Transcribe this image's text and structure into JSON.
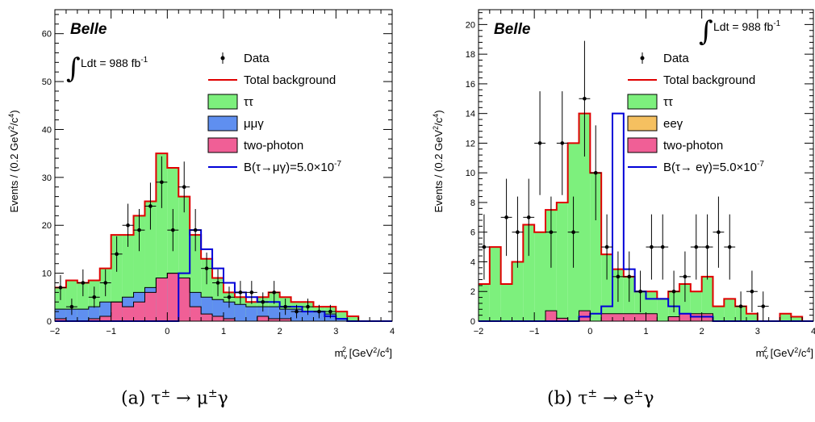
{
  "chart_data": [
    {
      "type": "histogram",
      "panel_tag": "Belle",
      "luminosity": "Ldt = 988 fb",
      "luminosity_sup": "-1",
      "ylabel": "Events / (0.2 GeV",
      "ylabel_sup1": "2",
      "ylabel_mid": "/c",
      "ylabel_sup2": "4",
      "ylabel_end": ")",
      "xlabel": "m",
      "xlabel_sub": "ν",
      "xlabel_sup": "2",
      "xlabel_unit": " [GeV",
      "xlabel_unit_sup1": "2",
      "xlabel_unit_mid": "/c",
      "xlabel_unit_sup2": "4",
      "xlabel_unit_end": "]",
      "xlim": [
        -2,
        4
      ],
      "ylim": [
        0,
        65
      ],
      "bin_width": 0.2,
      "xticks": [
        "−2",
        "−1",
        "0",
        "1",
        "2",
        "3",
        "4"
      ],
      "yticks": [
        "0",
        "10",
        "20",
        "30",
        "40",
        "50",
        "60"
      ],
      "yticks_values": [
        0,
        10,
        20,
        30,
        40,
        50,
        60
      ],
      "legend": {
        "data": "Data",
        "total": "Total background",
        "tautau": "ττ",
        "other": "μμγ",
        "twophoton": "two-photon",
        "signal": "B(τ→μγ)=5.0×10",
        "signal_sup": "-7"
      },
      "colors": {
        "tautau": "#7df07d",
        "other": "#5f8ff0",
        "twophoton": "#f05f96",
        "total": "#e00000",
        "signal": "#0000d8"
      },
      "bins_start": -2.0,
      "total_background": [
        7,
        8.5,
        8,
        8.5,
        11,
        18,
        18,
        22,
        25,
        35,
        32,
        26,
        18,
        13,
        9,
        6,
        5,
        4,
        5,
        6,
        5,
        4,
        4,
        3,
        3,
        2,
        1,
        0,
        0,
        0
      ],
      "other_mumugamma": [
        2.5,
        2.5,
        2.5,
        3,
        4,
        4,
        5,
        6,
        7,
        9,
        10,
        9,
        6,
        5,
        4.5,
        4,
        3.5,
        3,
        3,
        3,
        2.5,
        2.5,
        2,
        2,
        1.5,
        0.5,
        0,
        0,
        0,
        0
      ],
      "twophoton": [
        0.5,
        0,
        0,
        0.5,
        1,
        4,
        3,
        4,
        6,
        9,
        10,
        9,
        3,
        1.5,
        1,
        0.5,
        0,
        0,
        1,
        0.5,
        0.5,
        0,
        0,
        0,
        0,
        0,
        0,
        0,
        0,
        0
      ],
      "signal": [
        0,
        0,
        0,
        0,
        0,
        0,
        0,
        0,
        0,
        0,
        0,
        10,
        19,
        15,
        11,
        8,
        6,
        5,
        4,
        4,
        3,
        3,
        2,
        2,
        1,
        0.5,
        0,
        0,
        0,
        0
      ],
      "data_points": [
        {
          "x": -1.9,
          "y": 7,
          "e": 2.6
        },
        {
          "x": -1.7,
          "y": 3,
          "e": 1.7
        },
        {
          "x": -1.5,
          "y": 8,
          "e": 2.8
        },
        {
          "x": -1.3,
          "y": 5,
          "e": 2.2
        },
        {
          "x": -1.1,
          "y": 8,
          "e": 2.8
        },
        {
          "x": -0.9,
          "y": 14,
          "e": 3.7
        },
        {
          "x": -0.7,
          "y": 20,
          "e": 4.5
        },
        {
          "x": -0.5,
          "y": 19,
          "e": 4.4
        },
        {
          "x": -0.3,
          "y": 24,
          "e": 4.9
        },
        {
          "x": -0.1,
          "y": 29,
          "e": 5.4
        },
        {
          "x": 0.1,
          "y": 19,
          "e": 4.4
        },
        {
          "x": 0.3,
          "y": 28,
          "e": 5.3
        },
        {
          "x": 0.5,
          "y": 19,
          "e": 4.4
        },
        {
          "x": 0.7,
          "y": 11,
          "e": 3.3
        },
        {
          "x": 0.9,
          "y": 8,
          "e": 2.8
        },
        {
          "x": 1.1,
          "y": 5,
          "e": 2.2
        },
        {
          "x": 1.3,
          "y": 6,
          "e": 2.4
        },
        {
          "x": 1.5,
          "y": 6,
          "e": 2.4
        },
        {
          "x": 1.7,
          "y": 4,
          "e": 2.0
        },
        {
          "x": 1.9,
          "y": 6,
          "e": 2.4
        },
        {
          "x": 2.1,
          "y": 3,
          "e": 1.7
        },
        {
          "x": 2.3,
          "y": 2,
          "e": 1.4
        },
        {
          "x": 2.5,
          "y": 3,
          "e": 1.7
        },
        {
          "x": 2.7,
          "y": 2,
          "e": 1.4
        },
        {
          "x": 2.9,
          "y": 2,
          "e": 1.4
        }
      ]
    },
    {
      "type": "histogram",
      "panel_tag": "Belle",
      "luminosity": "Ldt = 988 fb",
      "luminosity_sup": "-1",
      "ylabel": "Events / (0.2 GeV",
      "ylabel_sup1": "2",
      "ylabel_mid": "/c",
      "ylabel_sup2": "4",
      "ylabel_end": ")",
      "xlabel": "m",
      "xlabel_sub": "ν",
      "xlabel_sup": "2",
      "xlabel_unit": " [GeV",
      "xlabel_unit_sup1": "2",
      "xlabel_unit_mid": "/c",
      "xlabel_unit_sup2": "4",
      "xlabel_unit_end": "]",
      "xlim": [
        -2,
        4
      ],
      "ylim": [
        0,
        21
      ],
      "bin_width": 0.2,
      "xticks": [
        "−2",
        "−1",
        "0",
        "1",
        "2",
        "3",
        "4"
      ],
      "yticks": [
        "0",
        "2",
        "4",
        "6",
        "8",
        "10",
        "12",
        "14",
        "16",
        "18",
        "20"
      ],
      "yticks_values": [
        0,
        2,
        4,
        6,
        8,
        10,
        12,
        14,
        16,
        18,
        20
      ],
      "legend": {
        "data": "Data",
        "total": "Total background",
        "tautau": "ττ",
        "other": "eeγ",
        "twophoton": "two-photon",
        "signal": "B(τ→ eγ)=5.0×10",
        "signal_sup": "-7"
      },
      "colors": {
        "tautau": "#7df07d",
        "other": "#f5c060",
        "twophoton": "#f05f96",
        "total": "#e00000",
        "signal": "#0000d8"
      },
      "bins_start": -2.0,
      "total_background": [
        2.5,
        5,
        2.5,
        4,
        6.5,
        6,
        7.5,
        8,
        12,
        14,
        10,
        4.5,
        3.5,
        3,
        2,
        2,
        1.5,
        2,
        2.5,
        2,
        3,
        1,
        1.5,
        1,
        0.5,
        0,
        0,
        0.5,
        0.3,
        0
      ],
      "other_mumugamma": [
        0,
        0,
        0,
        0,
        0,
        0,
        0,
        0,
        0,
        0,
        0,
        0,
        0,
        0,
        0,
        0,
        0,
        0,
        0,
        0,
        0,
        0,
        0,
        0,
        0,
        0,
        0,
        0,
        0,
        0
      ],
      "twophoton": [
        0,
        0,
        0,
        0,
        0,
        0,
        0.7,
        0.2,
        0,
        0.7,
        0,
        0.5,
        0.5,
        0.5,
        0.5,
        0.5,
        0,
        0.3,
        0.5,
        0.5,
        0.5,
        0,
        0,
        0,
        0,
        0,
        0,
        0,
        0,
        0
      ],
      "signal": [
        0,
        0,
        0,
        0,
        0,
        0,
        0,
        0,
        0,
        0.3,
        0.5,
        1,
        14,
        3.5,
        2,
        1.5,
        1.5,
        1,
        0.5,
        0.3,
        0.3,
        0,
        0,
        0,
        0,
        0,
        0,
        0,
        0,
        0
      ],
      "data_points": [
        {
          "x": -1.9,
          "y": 5,
          "e": 2.2
        },
        {
          "x": -1.5,
          "y": 7,
          "e": 2.6
        },
        {
          "x": -1.3,
          "y": 6,
          "e": 2.4
        },
        {
          "x": -1.1,
          "y": 7,
          "e": 2.6
        },
        {
          "x": -0.9,
          "y": 12,
          "e": 3.5
        },
        {
          "x": -0.7,
          "y": 6,
          "e": 2.4
        },
        {
          "x": -0.5,
          "y": 12,
          "e": 3.5
        },
        {
          "x": -0.3,
          "y": 6,
          "e": 2.4
        },
        {
          "x": -0.1,
          "y": 15,
          "e": 3.9
        },
        {
          "x": 0.1,
          "y": 10,
          "e": 3.2
        },
        {
          "x": 0.3,
          "y": 5,
          "e": 2.2
        },
        {
          "x": 0.5,
          "y": 3,
          "e": 1.7
        },
        {
          "x": 0.7,
          "y": 3,
          "e": 1.7
        },
        {
          "x": 0.9,
          "y": 2,
          "e": 1.4
        },
        {
          "x": 1.1,
          "y": 5,
          "e": 2.2
        },
        {
          "x": 1.3,
          "y": 5,
          "e": 2.2
        },
        {
          "x": 1.5,
          "y": 2,
          "e": 1.4
        },
        {
          "x": 1.7,
          "y": 3,
          "e": 1.7
        },
        {
          "x": 1.9,
          "y": 5,
          "e": 2.2
        },
        {
          "x": 2.1,
          "y": 5,
          "e": 2.2
        },
        {
          "x": 2.3,
          "y": 6,
          "e": 2.4
        },
        {
          "x": 2.5,
          "y": 5,
          "e": 2.2
        },
        {
          "x": 2.7,
          "y": 1,
          "e": 1.0
        },
        {
          "x": 2.9,
          "y": 2,
          "e": 1.4
        },
        {
          "x": 3.1,
          "y": 1,
          "e": 1.0
        }
      ]
    }
  ],
  "captions": [
    {
      "label": "(a) τ",
      "sup": "±",
      "mid": " → μ",
      "sup2": "±",
      "end": "γ"
    },
    {
      "label": "(b) τ",
      "sup": "±",
      "mid": " → e",
      "sup2": "±",
      "end": "γ"
    }
  ]
}
